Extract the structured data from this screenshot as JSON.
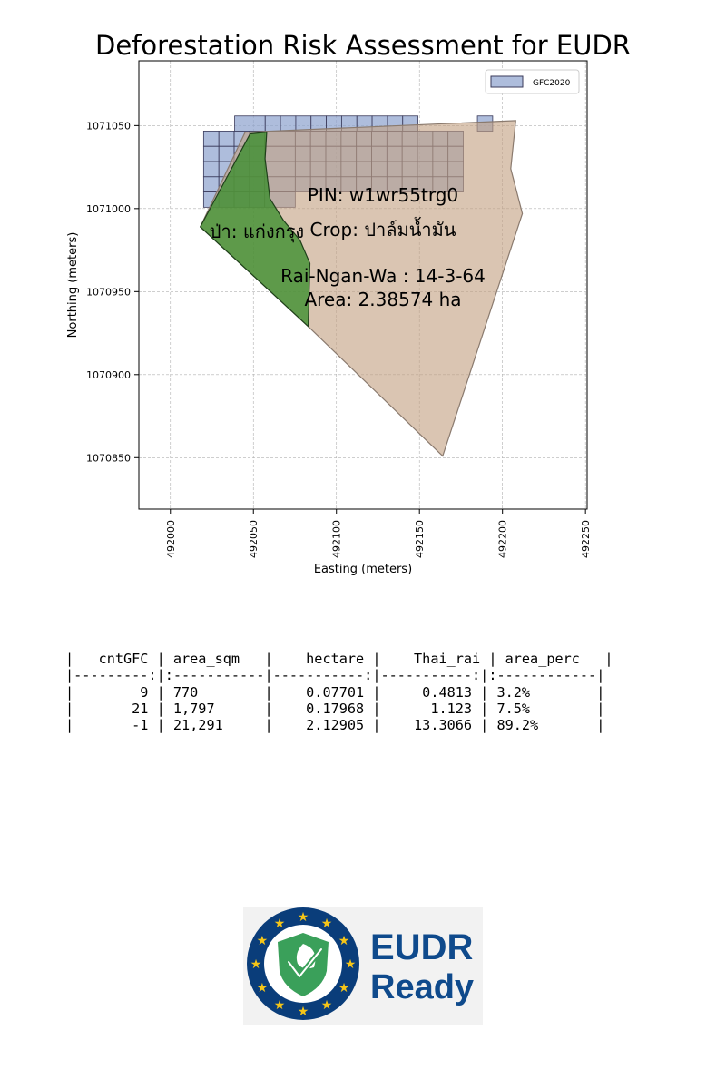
{
  "chart_data": {
    "type": "map",
    "title": "Deforestation Risk Assessment for EUDR",
    "xlabel": "Easting (meters)",
    "ylabel": "Northing (meters)",
    "xlim": [
      491981,
      492251
    ],
    "ylim": [
      1070819,
      1071089
    ],
    "xticks": [
      492000,
      492050,
      492100,
      492150,
      492200,
      492250
    ],
    "yticks": [
      1070850,
      1070900,
      1070950,
      1071000,
      1071050
    ],
    "grid": true,
    "legend": {
      "position": "top-right",
      "entries": [
        "GFC2020"
      ]
    },
    "gfc_cell_size": 9.2,
    "gfc_rows": [
      {
        "y0": 1071046.6,
        "x0": 492038.7,
        "cols": 12
      },
      {
        "y0": 1071046.6,
        "x0": 492184.9,
        "cols": 1
      },
      {
        "y0": 1071037.5,
        "x0": 492020.0,
        "cols": 17
      },
      {
        "y0": 1071028.3,
        "x0": 492020.0,
        "cols": 17
      },
      {
        "y0": 1071019.1,
        "x0": 492020.0,
        "cols": 17
      },
      {
        "y0": 1071010.0,
        "x0": 492020.0,
        "cols": 17
      },
      {
        "y0": 1071000.8,
        "x0": 492020.0,
        "cols": 6
      }
    ],
    "parcel_polygon": [
      [
        492045,
        1071046
      ],
      [
        492208,
        1071053
      ],
      [
        492205,
        1071024
      ],
      [
        492212,
        1070997
      ],
      [
        492164,
        1070851
      ],
      [
        492083,
        1070929
      ],
      [
        492040,
        1070969
      ],
      [
        492018,
        1070989
      ]
    ],
    "forest_polygon": [
      [
        492018,
        1070989
      ],
      [
        492048,
        1071045
      ],
      [
        492058,
        1071046
      ],
      [
        492057,
        1071030
      ],
      [
        492060,
        1071006
      ],
      [
        492068,
        1070993
      ],
      [
        492078,
        1070981
      ],
      [
        492084,
        1070967
      ],
      [
        492083,
        1070929
      ]
    ],
    "annotations": {
      "pin": "PIN: w1wr55trg0",
      "crop": "Crop: ปาล์มน้ำมัน",
      "forest": "ป่า: แก่งกรุง",
      "rai_ngan_wa": "Rai-Ngan-Wa : 14-3-64",
      "area": "Area: 2.38574 ha"
    },
    "colors": {
      "gfc_fill": "#8fa4cf",
      "gfc_edge": "#3a3a5a",
      "parcel_fill": "#c4a283",
      "parcel_edge": "#8a7a6e",
      "forest_fill": "#3f8f2f",
      "forest_edge": "#1f3f1a"
    }
  },
  "table": {
    "lines": [
      "|   cntGFC | area_sqm   |    hectare |    Thai_rai | area_perc   |",
      "|---------:|:-----------|-----------:|-----------:|:------------|",
      "|        9 | 770        |    0.07701 |     0.4813 | 3.2%        |",
      "|       21 | 1,797      |    0.17968 |      1.123 | 7.5%        |",
      "|       -1 | 21,291     |    2.12905 |    13.3066 | 89.2%       |"
    ],
    "columns": [
      "cntGFC",
      "area_sqm",
      "hectare",
      "Thai_rai",
      "area_perc"
    ],
    "rows": [
      [
        9,
        "770",
        0.07701,
        0.4813,
        "3.2%"
      ],
      [
        21,
        "1,797",
        0.17968,
        1.123,
        "7.5%"
      ],
      [
        -1,
        "21,291",
        2.12905,
        13.3066,
        "89.2%"
      ]
    ]
  },
  "logo": {
    "text_line1": "EUDR",
    "text_line2": "Ready",
    "ring_color": "#0a3d7a",
    "star_color": "#f5c518",
    "shield_color": "#3aa05a",
    "text_color": "#0f4a8c"
  }
}
